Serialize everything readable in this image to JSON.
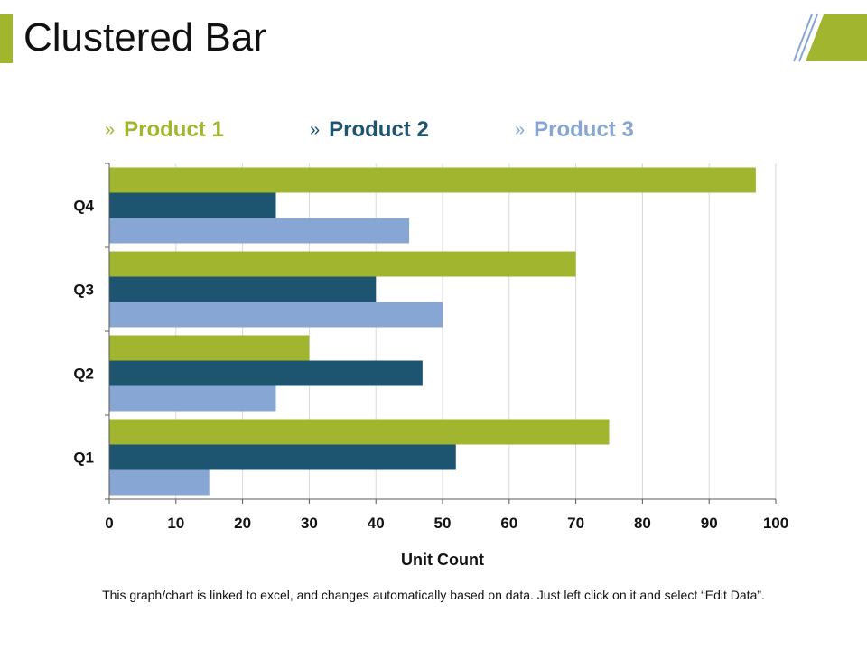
{
  "page": {
    "title": "Clustered Bar",
    "note": "This graph/chart is linked to excel, and changes automatically based on data. Just left click on it and select “Edit Data”."
  },
  "colors": {
    "accent": "#a1b62e",
    "product1": "#a1b62e",
    "product2": "#1d5470",
    "product3": "#87a6d3",
    "grid": "#d9d9d9",
    "axis": "#595959"
  },
  "chart_data": {
    "type": "bar",
    "orientation": "horizontal",
    "title": "",
    "xlabel": "Unit Count",
    "ylabel": "",
    "xlim": [
      0,
      100
    ],
    "x_ticks": [
      0,
      10,
      20,
      30,
      40,
      50,
      60,
      70,
      80,
      90,
      100
    ],
    "grid": true,
    "legend_position": "top",
    "categories": [
      "Q1",
      "Q2",
      "Q3",
      "Q4"
    ],
    "series": [
      {
        "name": "Product 1",
        "values": [
          75,
          30,
          70,
          97
        ]
      },
      {
        "name": "Product 2",
        "values": [
          52,
          47,
          40,
          25
        ]
      },
      {
        "name": "Product 3",
        "values": [
          15,
          25,
          50,
          45
        ]
      }
    ]
  }
}
